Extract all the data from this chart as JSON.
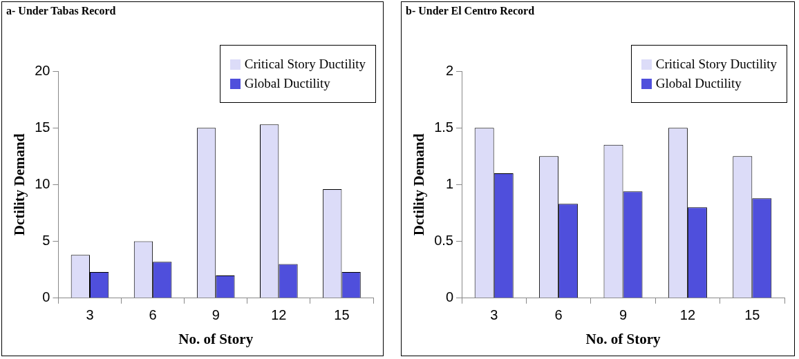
{
  "chart_data": [
    {
      "type": "bar",
      "title": "a- Under Tabas Record",
      "xlabel": "No. of Story",
      "ylabel": "Dctility Demand",
      "categories": [
        "3",
        "6",
        "9",
        "12",
        "15"
      ],
      "series": [
        {
          "name": "Critical Story Ductility",
          "color": "#dcdcf8",
          "values": [
            3.8,
            5.0,
            15.0,
            15.3,
            9.6
          ]
        },
        {
          "name": "Global Ductility",
          "color": "#4f4fdc",
          "values": [
            2.3,
            3.2,
            2.0,
            3.0,
            2.3
          ]
        }
      ],
      "ylim": [
        0,
        20
      ],
      "yticks": [
        0,
        5,
        10,
        15,
        20
      ],
      "grid": false,
      "legend": "top right"
    },
    {
      "type": "bar",
      "title": "b- Under El Centro Record",
      "xlabel": "No. of Story",
      "ylabel": "Dctility Demand",
      "categories": [
        "3",
        "6",
        "9",
        "12",
        "15"
      ],
      "series": [
        {
          "name": "Critical Story Ductility",
          "color": "#dcdcf8",
          "values": [
            1.5,
            1.25,
            1.35,
            1.5,
            1.25
          ]
        },
        {
          "name": "Global Ductility",
          "color": "#4f4fdc",
          "values": [
            1.1,
            0.83,
            0.94,
            0.8,
            0.88
          ]
        }
      ],
      "ylim": [
        0,
        2
      ],
      "yticks": [
        0,
        0.5,
        1,
        1.5,
        2
      ],
      "grid": false,
      "legend": "top right"
    }
  ]
}
